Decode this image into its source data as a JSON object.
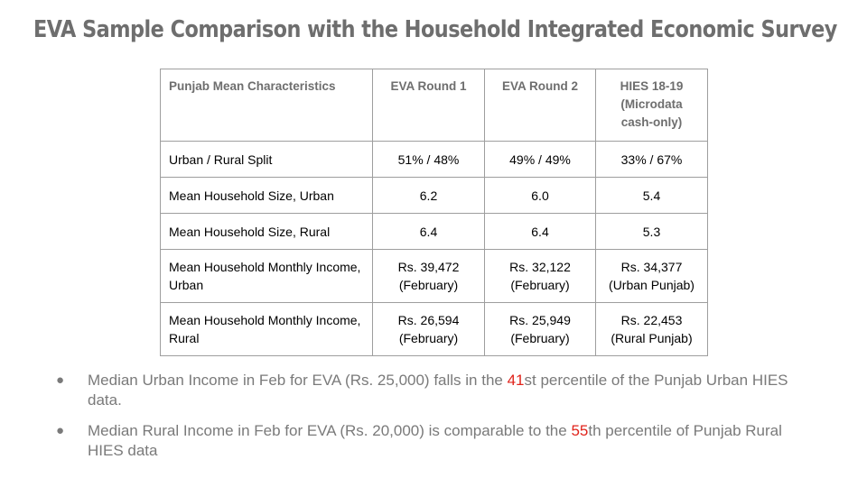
{
  "title": "EVA Sample Comparison with the Household Integrated Economic Survey",
  "table": {
    "headers": [
      "Punjab Mean Characteristics",
      "EVA Round 1",
      "EVA Round 2",
      "HIES 18-19 (Microdata cash-only)"
    ],
    "rows": [
      {
        "label": "Urban / Rural Split",
        "r1": "51% / 48%",
        "r2": "49% / 49%",
        "hies": "33% / 67%"
      },
      {
        "label": "Mean Household Size, Urban",
        "r1": "6.2",
        "r2": "6.0",
        "hies": "5.4"
      },
      {
        "label": "Mean Household  Size, Rural",
        "r1": "6.4",
        "r2": "6.4",
        "hies": "5.3"
      },
      {
        "label": "Mean Household Monthly Income, Urban",
        "r1": "Rs. 39,472",
        "r1_note": "(February)",
        "r2": "Rs. 32,122",
        "r2_note": "(February)",
        "hies": "Rs. 34,377",
        "hies_note": "(Urban Punjab)"
      },
      {
        "label": "Mean Household Monthly Income, Rural",
        "r1": "Rs. 26,594",
        "r1_note": "(February)",
        "r2": "Rs. 25,949",
        "r2_note": "(February)",
        "hies": "Rs. 22,453",
        "hies_note": "(Rural Punjab)"
      }
    ]
  },
  "bullets": [
    {
      "before": "Median Urban Income in Feb for EVA (Rs. 25,000) falls in the ",
      "highlight": "41",
      "after": "st percentile of the Punjab Urban HIES data."
    },
    {
      "before": "Median Rural Income in Feb for EVA (Rs. 20,000) is comparable to the ",
      "highlight": "55",
      "after": "th percentile of Punjab Rural HIES data"
    }
  ],
  "colors": {
    "title": "#6e6e6e",
    "highlight": "#e0231b",
    "body_text": "#7a7a7a",
    "table_border": "#9e9e9e"
  },
  "icons": {
    "bullet": "filled-circle"
  }
}
